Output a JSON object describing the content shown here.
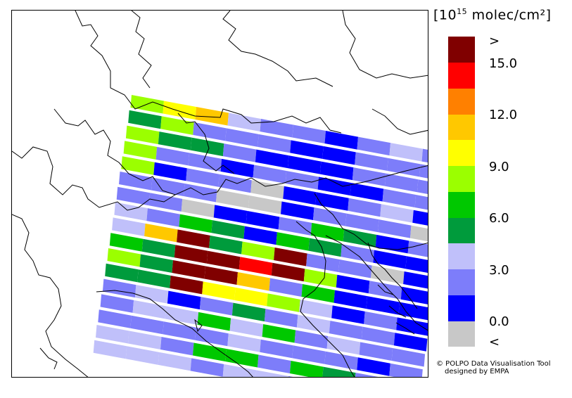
{
  "legend": {
    "unit_prefix": "[10",
    "unit_exp": "15",
    "unit_suffix": " molec/cm²]",
    "colors": [
      "#c8c8c8",
      "#0000ff",
      "#7d7dfa",
      "#c0c0fa",
      "#009b3c",
      "#00c800",
      "#9bff00",
      "#ffff00",
      "#ffc800",
      "#ff8000",
      "#ff0000",
      "#800000"
    ],
    "ticks": {
      "top": ">",
      "t15": "15.0",
      "t12": "12.0",
      "t9": "9.0",
      "t6": "6.0",
      "t3": "3.0",
      "t0": "0.0",
      "bottom": "<"
    }
  },
  "credit": {
    "line1": "© POLPO Data Visualisation Tool",
    "line2": "designed by EMPA"
  },
  "map": {
    "rows": [
      [
        "#9bff00",
        "#ffff00",
        "#ffc800",
        "#c0c0fa",
        "#7d7dfa",
        "#7d7dfa",
        "#0000ff",
        "#7d7dfa",
        "#c0c0fa",
        "#7d7dfa"
      ],
      [
        "#009b3c",
        "#9bff00",
        "#7d7dfa",
        "#7d7dfa",
        "#7d7dfa",
        "#0000ff",
        "#0000ff",
        "#7d7dfa",
        "#7d7dfa",
        "#7d7dfa"
      ],
      [
        "#9bff00",
        "#009b3c",
        "#009b3c",
        "#7d7dfa",
        "#0000ff",
        "#0000ff",
        "#0000ff",
        "#7d7dfa",
        "#7d7dfa",
        "#7d7dfa"
      ],
      [
        "#9bff00",
        "#7d7dfa",
        "#7d7dfa",
        "#0000ff",
        "#7d7dfa",
        "#7d7dfa",
        "#0000ff",
        "#0000ff",
        "#7d7dfa",
        "#7d7dfa"
      ],
      [
        "#9bff00",
        "#0000ff",
        "#7d7dfa",
        "#7d7dfa",
        "#c8c8c8",
        "#0000ff",
        "#0000ff",
        "#7d7dfa",
        "#c0c0fa",
        "#0000ff"
      ],
      [
        "#7d7dfa",
        "#7d7dfa",
        "#7d7dfa",
        "#c8c8c8",
        "#c8c8c8",
        "#0000ff",
        "#7d7dfa",
        "#7d7dfa",
        "#7d7dfa",
        "#c8c8c8"
      ],
      [
        "#7d7dfa",
        "#7d7dfa",
        "#c8c8c8",
        "#0000ff",
        "#0000ff",
        "#7d7dfa",
        "#00c800",
        "#009b3c",
        "#0000ff",
        "#7d7dfa"
      ],
      [
        "#c0c0fa",
        "#7d7dfa",
        "#00c800",
        "#009b3c",
        "#0000ff",
        "#00c800",
        "#009b3c",
        "#7d7dfa",
        "#0000ff",
        "#0000ff"
      ],
      [
        "#c0c0fa",
        "#ffc800",
        "#800000",
        "#009b3c",
        "#9bff00",
        "#800000",
        "#7d7dfa",
        "#7d7dfa",
        "#c8c8c8",
        "#0000ff"
      ],
      [
        "#00c800",
        "#009b3c",
        "#800000",
        "#800000",
        "#ff0000",
        "#800000",
        "#9bff00",
        "#0000ff",
        "#7d7dfa",
        "#0000ff"
      ],
      [
        "#9bff00",
        "#009b3c",
        "#800000",
        "#800000",
        "#ffc800",
        "#7d7dfa",
        "#00c800",
        "#0000ff",
        "#0000ff",
        "#0000ff"
      ],
      [
        "#009b3c",
        "#009b3c",
        "#800000",
        "#ffff00",
        "#ffff00",
        "#9bff00",
        "#c0c0fa",
        "#0000ff",
        "#7d7dfa",
        "#0000ff"
      ],
      [
        "#7d7dfa",
        "#c0c0fa",
        "#0000ff",
        "#7d7dfa",
        "#009b3c",
        "#7d7dfa",
        "#c0c0fa",
        "#7d7dfa",
        "#7d7dfa",
        "#0000ff"
      ],
      [
        "#7d7dfa",
        "#c0c0fa",
        "#c0c0fa",
        "#00c800",
        "#c0c0fa",
        "#00c800",
        "#7d7dfa",
        "#c0c0fa",
        "#7d7dfa",
        "#7d7dfa"
      ],
      [
        "#7d7dfa",
        "#7d7dfa",
        "#7d7dfa",
        "#7d7dfa",
        "#c0c0fa",
        "#7d7dfa",
        "#7d7dfa",
        "#7d7dfa",
        "#0000ff",
        "#7d7dfa"
      ],
      [
        "#c0c0fa",
        "#c0c0fa",
        "#7d7dfa",
        "#00c800",
        "#00c800",
        "#7d7dfa",
        "#00c800",
        "#009b3c",
        "#7d7dfa",
        "#7d7dfa"
      ],
      [
        "#c0c0fa",
        "#c0c0fa",
        "#c0c0fa",
        "#7d7dfa",
        "#c0c0fa",
        "#c0c0fa",
        "#7d7dfa",
        "#009b3c",
        "#c0c0fa",
        "#c0c0fa"
      ]
    ]
  }
}
